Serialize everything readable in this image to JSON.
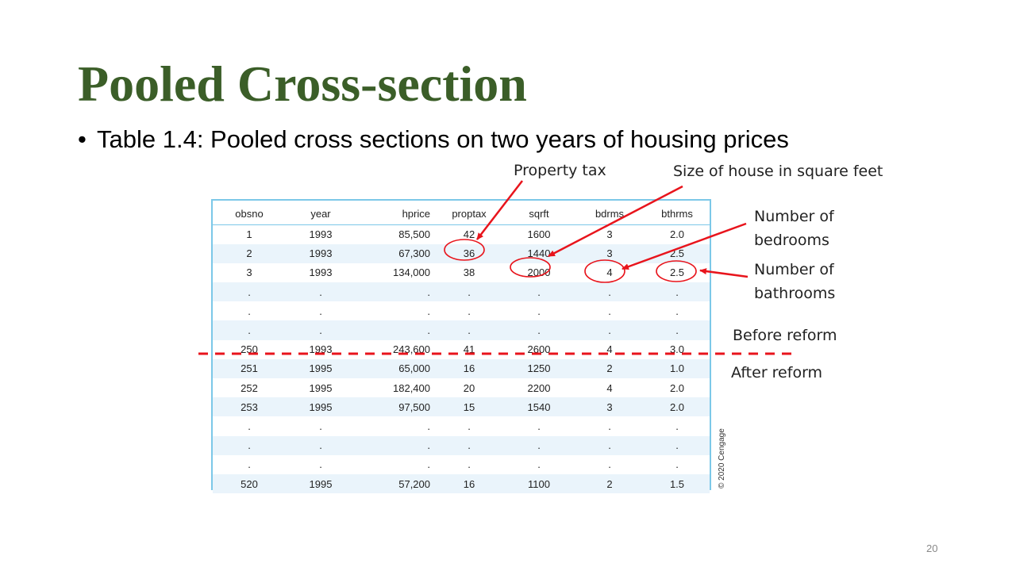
{
  "slide": {
    "title": "Pooled Cross-section",
    "bullet": "Table 1.4: Pooled cross sections on two years of housing prices",
    "page_number": "20"
  },
  "table": {
    "columns": [
      "obsno",
      "year",
      "hprice",
      "proptax",
      "sqrft",
      "bdrms",
      "bthrms"
    ],
    "rows": [
      [
        "1",
        "1993",
        "85,500",
        "42",
        "1600",
        "3",
        "2.0"
      ],
      [
        "2",
        "1993",
        "67,300",
        "36",
        "1440",
        "3",
        "2.5"
      ],
      [
        "3",
        "1993",
        "134,000",
        "38",
        "2000",
        "4",
        "2.5"
      ],
      [
        ".",
        ".",
        ".",
        ".",
        ".",
        ".",
        "."
      ],
      [
        ".",
        ".",
        ".",
        ".",
        ".",
        ".",
        "."
      ],
      [
        ".",
        ".",
        ".",
        ".",
        ".",
        ".",
        "."
      ],
      [
        "250",
        "1993",
        "243,600",
        "41",
        "2600",
        "4",
        "3.0"
      ],
      [
        "251",
        "1995",
        "65,000",
        "16",
        "1250",
        "2",
        "1.0"
      ],
      [
        "252",
        "1995",
        "182,400",
        "20",
        "2200",
        "4",
        "2.0"
      ],
      [
        "253",
        "1995",
        "97,500",
        "15",
        "1540",
        "3",
        "2.0"
      ],
      [
        ".",
        ".",
        ".",
        ".",
        ".",
        ".",
        "."
      ],
      [
        ".",
        ".",
        ".",
        ".",
        ".",
        ".",
        "."
      ],
      [
        ".",
        ".",
        ".",
        ".",
        ".",
        ".",
        "."
      ],
      [
        "520",
        "1995",
        "57,200",
        "16",
        "1100",
        "2",
        "1.5"
      ]
    ],
    "copyright": "© 2020 Cengage"
  },
  "annotations": {
    "property_tax": "Property tax",
    "house_size": "Size of house in square feet",
    "bedrooms_line1": "Number of",
    "bedrooms_line2": "bedrooms",
    "bathrooms_line1": "Number of",
    "bathrooms_line2": "bathrooms",
    "before_reform": "Before reform",
    "after_reform": "After reform"
  },
  "colors": {
    "title": "#3b5e28",
    "table_border": "#7cc8e8",
    "row_stripe": "#eaf4fb",
    "annotation_red": "#e8141c"
  }
}
